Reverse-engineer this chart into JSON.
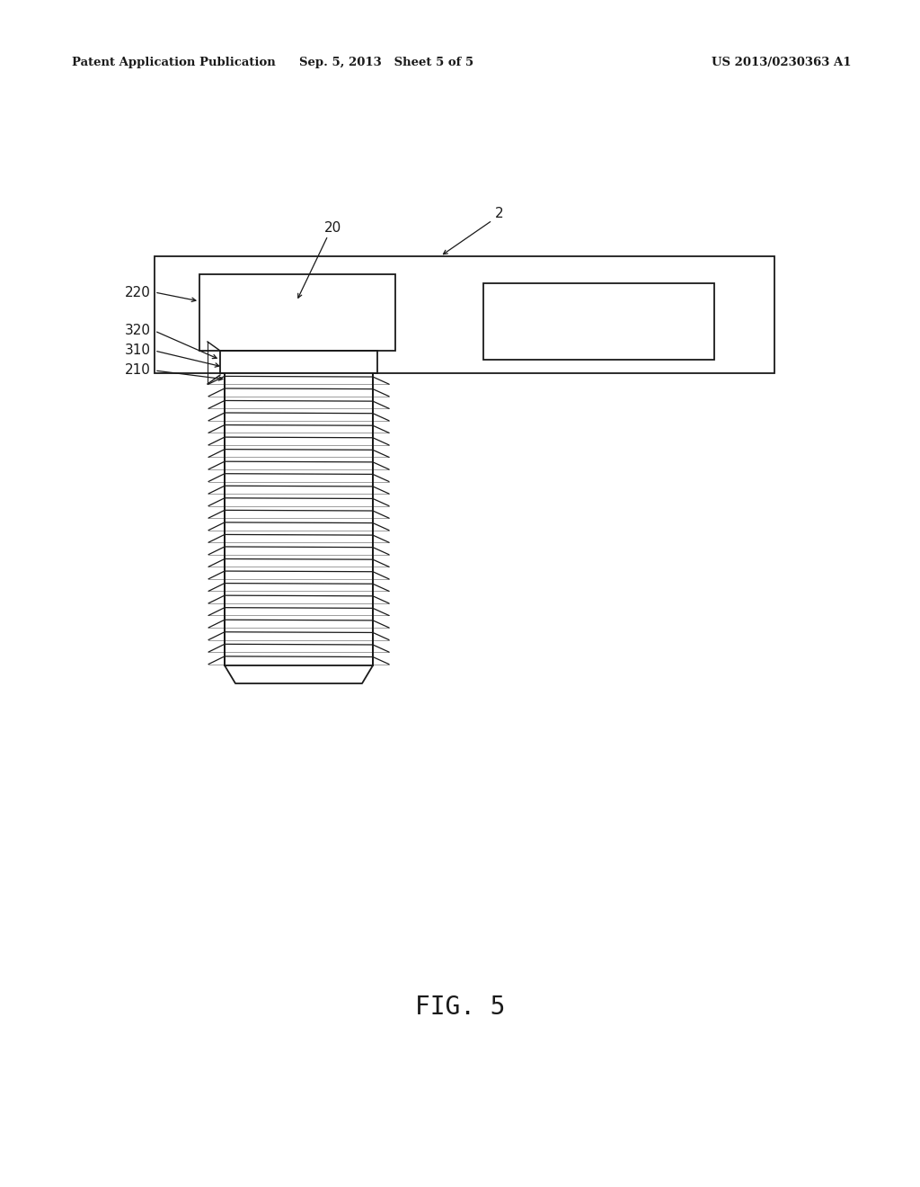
{
  "bg_color": "#ffffff",
  "line_color": "#1a1a1a",
  "header_left": "Patent Application Publication",
  "header_mid": "Sep. 5, 2013   Sheet 5 of 5",
  "header_right": "US 2013/0230363 A1",
  "fig_label": "FIG. 5",
  "line_width": 1.3,
  "annotation_fontsize": 11,
  "header_fontsize": 9.5,
  "fig_label_fontsize": 20,
  "thread_count": 24
}
